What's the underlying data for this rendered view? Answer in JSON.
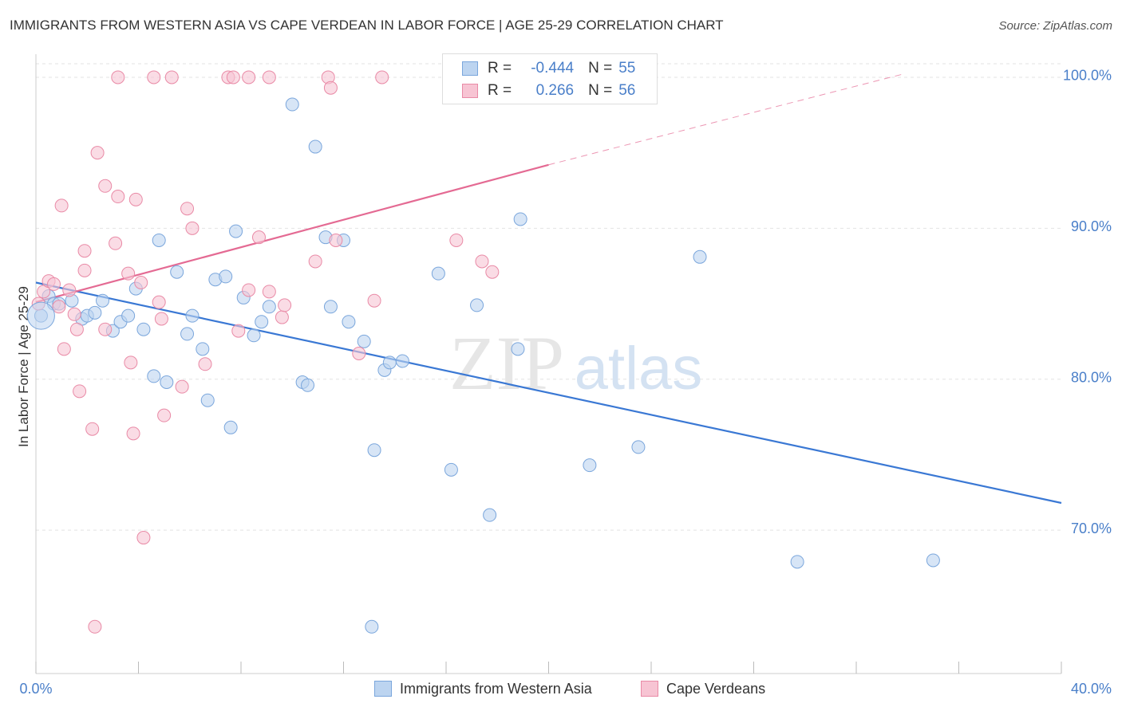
{
  "header": {
    "title": "IMMIGRANTS FROM WESTERN ASIA VS CAPE VERDEAN IN LABOR FORCE | AGE 25-29 CORRELATION CHART",
    "source": "Source: ZipAtlas.com"
  },
  "watermark": {
    "zip": "ZIP",
    "atlas": "atlas"
  },
  "legend": {
    "rows": [
      {
        "r_label": "R =",
        "r_value": "-0.444",
        "n_label": "N =",
        "n_value": "55"
      },
      {
        "r_label": "R =",
        "r_value": "0.266",
        "n_label": "N =",
        "n_value": "56"
      }
    ]
  },
  "bottom_legend": {
    "series1": "Immigrants from Western Asia",
    "series2": "Cape Verdeans"
  },
  "colors": {
    "blue_fill": "#bcd4f0",
    "blue_stroke": "#7aa6dc",
    "blue_line": "#3a78d4",
    "pink_fill": "#f7c4d3",
    "pink_stroke": "#e98aa6",
    "pink_line": "#e46a93",
    "grid": "#e3e3e3",
    "tick_text": "#4a7fc9"
  },
  "chart_data": {
    "type": "scatter",
    "title": "IMMIGRANTS FROM WESTERN ASIA VS CAPE VERDEAN IN LABOR FORCE | AGE 25-29 CORRELATION CHART",
    "xlabel": "",
    "ylabel": "In Labor Force | Age 25-29",
    "xlim": [
      0,
      40
    ],
    "ylim": [
      60.5,
      101
    ],
    "x_tick_labels": [
      "0.0%",
      "40.0%"
    ],
    "y_ticks": [
      70,
      80,
      90,
      100
    ],
    "y_tick_labels": [
      "70.0%",
      "80.0%",
      "90.0%",
      "100.0%"
    ],
    "grid": true,
    "legend_position": "top-center",
    "series": [
      {
        "name": "Immigrants from Western Asia",
        "r": -0.444,
        "n": 55,
        "trend": {
          "x": [
            0,
            40
          ],
          "y": [
            86.4,
            71.8
          ],
          "style": "solid"
        },
        "points": [
          [
            0.2,
            84.2
          ],
          [
            0.5,
            85.5
          ],
          [
            0.7,
            85.0
          ],
          [
            0.9,
            85.0
          ],
          [
            1.4,
            85.2
          ],
          [
            1.8,
            84.0
          ],
          [
            2.0,
            84.2
          ],
          [
            2.3,
            84.4
          ],
          [
            2.6,
            85.2
          ],
          [
            3.0,
            83.2
          ],
          [
            3.3,
            83.8
          ],
          [
            3.6,
            84.2
          ],
          [
            3.9,
            86.0
          ],
          [
            4.2,
            83.3
          ],
          [
            4.6,
            80.2
          ],
          [
            4.8,
            89.2
          ],
          [
            5.1,
            79.8
          ],
          [
            5.5,
            87.1
          ],
          [
            5.9,
            83.0
          ],
          [
            6.1,
            84.2
          ],
          [
            6.5,
            82.0
          ],
          [
            6.7,
            78.6
          ],
          [
            7.0,
            86.6
          ],
          [
            7.4,
            86.8
          ],
          [
            7.6,
            76.8
          ],
          [
            7.8,
            89.8
          ],
          [
            8.1,
            85.4
          ],
          [
            8.5,
            82.9
          ],
          [
            8.8,
            83.8
          ],
          [
            9.1,
            84.8
          ],
          [
            10.0,
            98.2
          ],
          [
            10.4,
            79.8
          ],
          [
            10.6,
            79.6
          ],
          [
            10.9,
            95.4
          ],
          [
            11.3,
            89.4
          ],
          [
            11.5,
            84.8
          ],
          [
            12.0,
            89.2
          ],
          [
            12.2,
            83.8
          ],
          [
            12.8,
            82.5
          ],
          [
            13.2,
            75.3
          ],
          [
            13.6,
            80.6
          ],
          [
            13.8,
            81.1
          ],
          [
            14.3,
            81.2
          ],
          [
            15.7,
            87.0
          ],
          [
            16.2,
            74.0
          ],
          [
            17.2,
            84.9
          ],
          [
            17.7,
            71.0
          ],
          [
            18.8,
            82.0
          ],
          [
            18.9,
            90.6
          ],
          [
            21.6,
            74.3
          ],
          [
            23.5,
            75.5
          ],
          [
            25.9,
            88.1
          ],
          [
            29.7,
            67.9
          ],
          [
            35.0,
            68.0
          ],
          [
            13.1,
            63.6
          ]
        ]
      },
      {
        "name": "Cape Verdeans",
        "r": 0.266,
        "n": 56,
        "trend": {
          "x": [
            0,
            20
          ],
          "y": [
            85.1,
            94.2
          ],
          "style": "solid",
          "extension": {
            "x": [
              20,
              33.8
            ],
            "y": [
              94.2,
              100.2
            ],
            "style": "dashed"
          }
        },
        "points": [
          [
            0.1,
            85.0
          ],
          [
            0.3,
            85.8
          ],
          [
            0.5,
            86.5
          ],
          [
            0.7,
            86.3
          ],
          [
            0.9,
            84.8
          ],
          [
            1.0,
            91.5
          ],
          [
            1.1,
            82.0
          ],
          [
            1.3,
            85.9
          ],
          [
            1.5,
            84.3
          ],
          [
            1.6,
            83.3
          ],
          [
            1.7,
            79.2
          ],
          [
            1.9,
            88.5
          ],
          [
            1.9,
            87.2
          ],
          [
            2.2,
            76.7
          ],
          [
            2.4,
            95.0
          ],
          [
            2.7,
            92.8
          ],
          [
            2.7,
            83.3
          ],
          [
            3.1,
            89.0
          ],
          [
            3.2,
            92.1
          ],
          [
            3.2,
            100.0
          ],
          [
            3.6,
            87.0
          ],
          [
            3.7,
            81.1
          ],
          [
            3.8,
            76.4
          ],
          [
            3.9,
            91.9
          ],
          [
            4.1,
            86.4
          ],
          [
            4.2,
            69.5
          ],
          [
            4.6,
            100.0
          ],
          [
            4.8,
            85.1
          ],
          [
            4.9,
            84.0
          ],
          [
            5.0,
            77.6
          ],
          [
            5.3,
            100.0
          ],
          [
            5.7,
            79.5
          ],
          [
            5.9,
            91.3
          ],
          [
            6.1,
            90.0
          ],
          [
            6.6,
            81.0
          ],
          [
            7.5,
            100.0
          ],
          [
            7.7,
            100.0
          ],
          [
            7.9,
            83.2
          ],
          [
            8.3,
            85.9
          ],
          [
            8.3,
            100.0
          ],
          [
            8.7,
            89.4
          ],
          [
            9.1,
            85.8
          ],
          [
            9.1,
            100.0
          ],
          [
            9.6,
            84.1
          ],
          [
            9.7,
            84.9
          ],
          [
            10.9,
            87.8
          ],
          [
            11.4,
            100.0
          ],
          [
            11.5,
            99.3
          ],
          [
            11.7,
            89.2
          ],
          [
            12.6,
            81.7
          ],
          [
            13.5,
            100.0
          ],
          [
            16.4,
            89.2
          ],
          [
            17.4,
            87.8
          ],
          [
            17.8,
            87.1
          ],
          [
            2.3,
            63.6
          ],
          [
            13.2,
            85.2
          ]
        ]
      }
    ]
  }
}
